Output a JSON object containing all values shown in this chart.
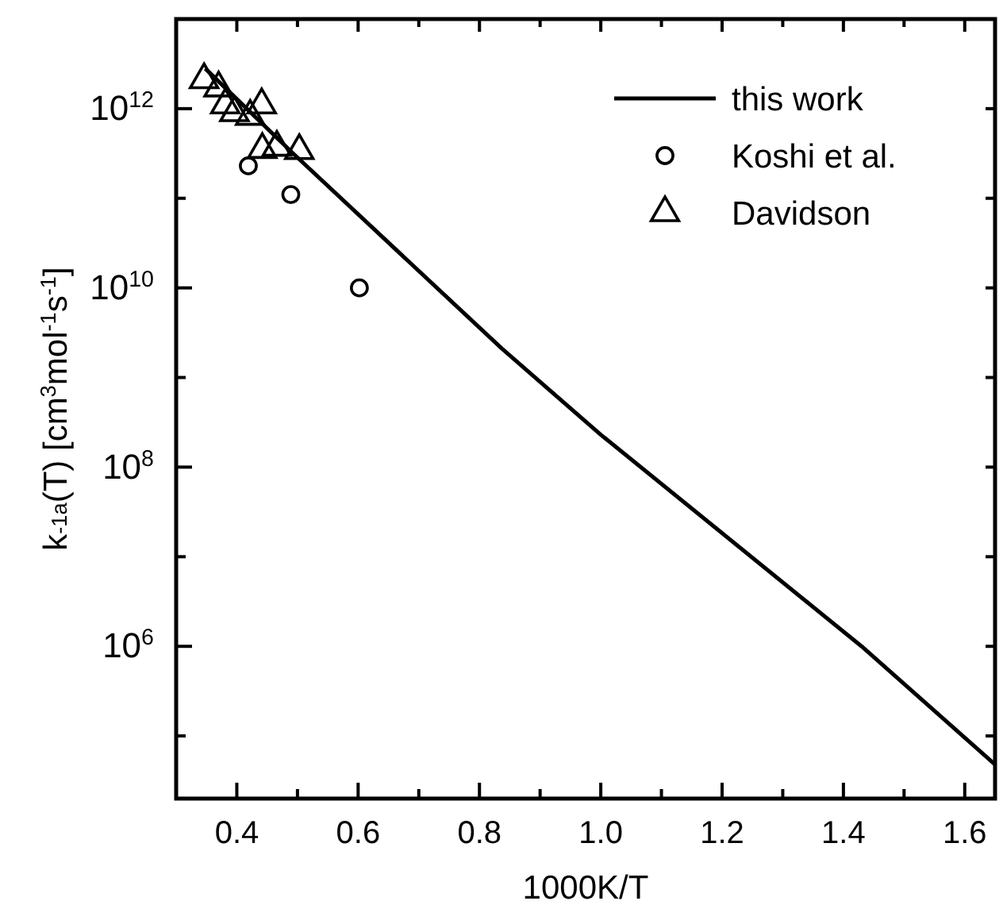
{
  "chart_data": {
    "type": "scatter",
    "xlabel": "1000K/T",
    "ylabel": "k$_{-1a}$(T) [cm$^{3}$mol$^{-1}$s$^{-1}$]",
    "xlim": [
      0.3,
      1.65
    ],
    "ylim": [
      20000,
      10000000000000
    ],
    "log": "y",
    "legend": "top right",
    "grid": false,
    "xticks": [
      {
        "value": 0.3,
        "label": null
      },
      {
        "value": 0.4,
        "label": "0.4"
      },
      {
        "value": 0.5,
        "label": null
      },
      {
        "value": 0.6,
        "label": "0.6"
      },
      {
        "value": 0.7,
        "label": null
      },
      {
        "value": 0.8,
        "label": "0.8"
      },
      {
        "value": 0.9,
        "label": null
      },
      {
        "value": 1.0,
        "label": "1.0"
      },
      {
        "value": 1.1,
        "label": null
      },
      {
        "value": 1.2,
        "label": "1.2"
      },
      {
        "value": 1.3,
        "label": null
      },
      {
        "value": 1.4,
        "label": "1.4"
      },
      {
        "value": 1.5,
        "label": null
      },
      {
        "value": 1.6,
        "label": "1.6"
      }
    ],
    "yticks": [
      {
        "value": 100000,
        "label": null
      },
      {
        "value": 1000000,
        "label": "10$^{6}$"
      },
      {
        "value": 10000000,
        "label": null
      },
      {
        "value": 100000000,
        "label": "10$^{8}$"
      },
      {
        "value": 1000000000,
        "label": null
      },
      {
        "value": 10000000000,
        "label": "10$^{10}$"
      },
      {
        "value": 100000000000,
        "label": null
      },
      {
        "value": 1000000000000,
        "label": "10$^{12}$"
      }
    ],
    "series": [
      {
        "name": "this work",
        "type": "line",
        "color": "#000000",
        "marker": "none",
        "line_style": "solid",
        "x": [
          0.348,
          0.492,
          0.837,
          1.0,
          1.43,
          1.65
        ],
        "values": [
          2800000000000,
          320000000000,
          2100000000,
          230000000,
          1000000,
          48000
        ]
      },
      {
        "name": "Koshi et al.",
        "color": "#000000",
        "marker": "circle",
        "x": [
          0.419,
          0.489,
          0.602
        ],
        "values": [
          230000000000,
          110000000000,
          10000000000
        ]
      },
      {
        "name": "Davidson",
        "color": "#000000",
        "marker": "triangle",
        "x": [
          0.346,
          0.37,
          0.381,
          0.396,
          0.422,
          0.441,
          0.442,
          0.466,
          0.503
        ],
        "values": [
          2100000000000,
          1700000000000,
          1100000000000,
          900000000000,
          820000000000,
          1100000000000,
          350000000000,
          370000000000,
          340000000000
        ]
      }
    ]
  }
}
